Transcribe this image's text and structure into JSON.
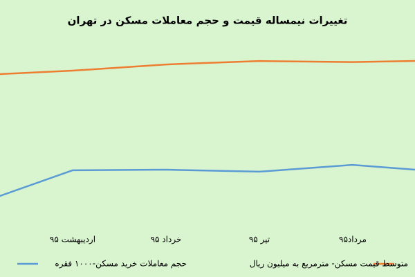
{
  "chart_data": {
    "type": "line",
    "title": "تغییرات نیمساله قیمت و حجم معاملات مسکن در تهران",
    "categories": [
      null,
      "اردیبهشت ۹۵",
      "خرداد ۹۵",
      "تیر ۹۵",
      "مرداد۹۵",
      null
    ],
    "series": [
      {
        "name": "متوسط قیمت مسکن- مترمربع  به میلیون ریال",
        "color": "#ed7d31",
        "values": [
          76.4,
          78.6,
          81.7,
          83.4,
          82.9,
          83.7
        ]
      },
      {
        "name": "حجم معاملات خرید مسکن-۱۰۰۰ فقره",
        "color": "#5b9bd5",
        "values": [
          12.6,
          29.0,
          29.3,
          28.3,
          31.7,
          28.1
        ]
      }
    ],
    "ylim": [
      0,
      100
    ],
    "legend": "bottom"
  }
}
